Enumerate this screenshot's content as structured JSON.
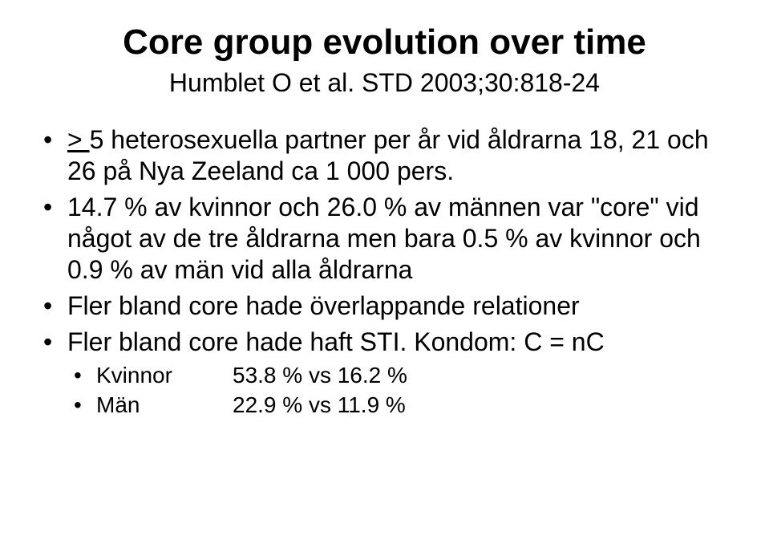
{
  "title": "Core group evolution over time",
  "subtitle": "Humblet O et al. STD 2003;30:818-24",
  "bullets": [
    {
      "pre": "",
      "underlined": "> ",
      "post": "5 heterosexuella partner per år vid åldrarna 18, 21 och 26 på Nya Zeeland ca 1 000 pers."
    },
    {
      "pre": "14.7 % av kvinnor och 26.0 % av männen var \"core\" vid något av de tre åldrarna men bara 0.5 % av kvinnor och 0.9 % av män vid alla åldrarna",
      "underlined": "",
      "post": ""
    },
    {
      "pre": "Fler bland core hade överlappande relationer",
      "underlined": "",
      "post": ""
    },
    {
      "pre": "Fler bland core hade haft STI. Kondom: C = nC",
      "underlined": "",
      "post": "",
      "sub": [
        {
          "label": "Kvinnor",
          "value": "53.8 % vs 16.2 %"
        },
        {
          "label": "Män",
          "value": "22.9 % vs 11.9 %"
        }
      ]
    }
  ],
  "style": {
    "bg": "#ffffff",
    "text": "#000000",
    "title_fontsize": 44,
    "body_fontsize": 32,
    "sub_fontsize": 28,
    "font_family": "Arial"
  }
}
